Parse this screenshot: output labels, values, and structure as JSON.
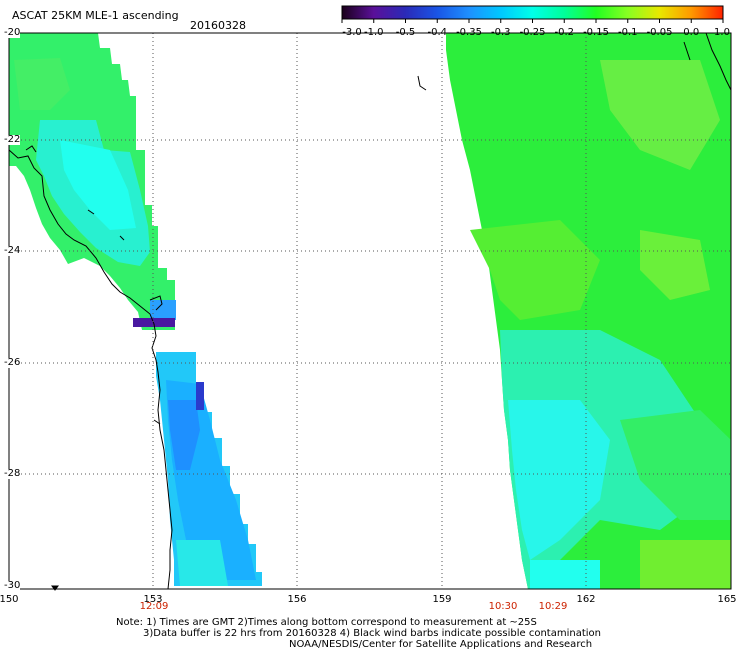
{
  "header": {
    "title": "ASCAT 25KM MLE-1 ascending",
    "date": "20160328"
  },
  "colorbar": {
    "labels": [
      "-3.0",
      "-1.0",
      "-0.5",
      "-0.4",
      "-0.35",
      "-0.3",
      "-0.25",
      "-0.2",
      "-0.15",
      "-0.1",
      "-0.05",
      "0.0",
      "1.0"
    ],
    "colors": [
      "#1a001a",
      "#5a1099",
      "#2a2ab8",
      "#1a55e6",
      "#1e90ff",
      "#00c8ff",
      "#00ffe8",
      "#00ff9a",
      "#22ff22",
      "#88ff22",
      "#e8e800",
      "#ff9900",
      "#ff2200"
    ]
  },
  "axes": {
    "lat_labels": [
      "-20",
      "-22",
      "-24",
      "-26",
      "-28",
      "-30"
    ],
    "lon_labels": [
      "150",
      "153",
      "156",
      "159",
      "162",
      "165"
    ]
  },
  "pass_times": [
    "12:09",
    "10:30",
    "10:29"
  ],
  "footer": {
    "line1": "Note: 1) Times are GMT 2)Times along bottom correspond to measurement at ~25S",
    "line2": "3)Data buffer is 22 hrs from 20160328 4) Black wind barbs indicate possible contamination",
    "line3": "NOAA/NESDIS/Center for Satellite Applications and Research"
  }
}
